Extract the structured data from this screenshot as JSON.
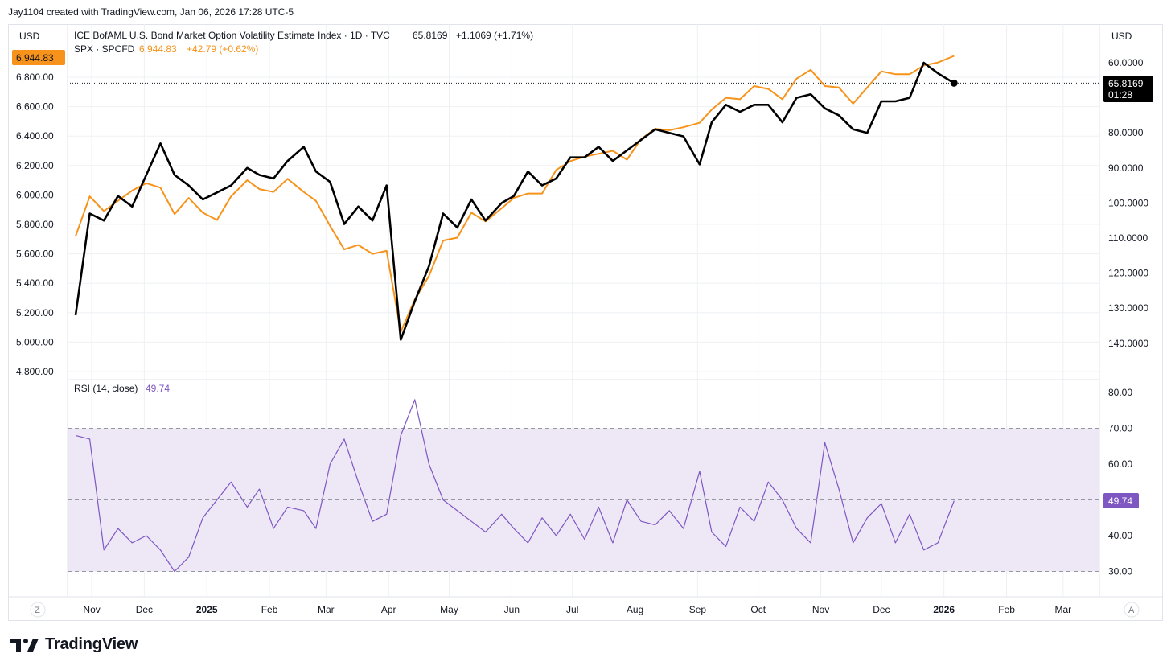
{
  "header": {
    "text": "Jay1104 created with TradingView.com, Jan 06, 2026 17:28 UTC-5"
  },
  "footer": {
    "brand": "TradingView"
  },
  "colors": {
    "spx": "#f7931a",
    "vol": "#000000",
    "rsi": "#7e57c2",
    "rsi_band": "#ede7f6",
    "grid": "#eef0f3"
  },
  "chart_data": [
    {
      "type": "line",
      "title": "ICE BofAML U.S. Bond Market Option Volatility Estimate Index · 1D · TVC",
      "left_axis": {
        "currency": "USD",
        "ticks": [
          "6,800.00",
          "6,600.00",
          "6,400.00",
          "6,200.00",
          "6,000.00",
          "5,800.00",
          "5,600.00",
          "5,400.00",
          "5,200.00",
          "5,000.00",
          "4,800.00"
        ],
        "range": [
          4800,
          7000
        ]
      },
      "right_axis": {
        "currency": "USD",
        "ticks": [
          "60.0000",
          "80.0000",
          "90.0000",
          "100.0000",
          "110.0000",
          "120.0000",
          "130.0000",
          "140.0000"
        ],
        "inverted": true
      },
      "x_ticks": [
        "Nov",
        "Dec",
        "2025",
        "Feb",
        "Mar",
        "Apr",
        "May",
        "Jun",
        "Jul",
        "Aug",
        "Sep",
        "Oct",
        "Nov",
        "Dec",
        "2026",
        "Feb",
        "Mar"
      ],
      "legend": {
        "vol_label": "ICE BofAML U.S. Bond Market Option Volatility Estimate Index · 1D · TVC",
        "vol_last": "65.8169",
        "vol_change": "+1.1069 (+1.71%)",
        "spx_label": "SPX · SPCFD",
        "spx_last": "6,944.83",
        "spx_change": "+42.79 (+0.62%)"
      },
      "badges": {
        "spx_price": "6,944.83",
        "vol_price": "65.8169",
        "vol_countdown": "01:28"
      },
      "series": [
        {
          "name": "SPX · SPCFD",
          "axis": "left",
          "x": [
            "2024-10-28",
            "2024-11-04",
            "2024-11-11",
            "2024-11-18",
            "2024-11-25",
            "2024-12-02",
            "2024-12-09",
            "2024-12-16",
            "2024-12-23",
            "2024-12-30",
            "2025-01-06",
            "2025-01-13",
            "2025-01-21",
            "2025-01-27",
            "2025-02-03",
            "2025-02-10",
            "2025-02-18",
            "2025-02-24",
            "2025-03-03",
            "2025-03-10",
            "2025-03-17",
            "2025-03-24",
            "2025-03-31",
            "2025-04-07",
            "2025-04-14",
            "2025-04-21",
            "2025-04-28",
            "2025-05-05",
            "2025-05-12",
            "2025-05-19",
            "2025-05-27",
            "2025-06-02",
            "2025-06-09",
            "2025-06-16",
            "2025-06-23",
            "2025-06-30",
            "2025-07-07",
            "2025-07-14",
            "2025-07-21",
            "2025-07-28",
            "2025-08-04",
            "2025-08-11",
            "2025-08-18",
            "2025-08-25",
            "2025-09-02",
            "2025-09-08",
            "2025-09-15",
            "2025-09-22",
            "2025-09-29",
            "2025-10-06",
            "2025-10-13",
            "2025-10-20",
            "2025-10-27",
            "2025-11-03",
            "2025-11-10",
            "2025-11-17",
            "2025-11-24",
            "2025-12-01",
            "2025-12-08",
            "2025-12-15",
            "2025-12-22",
            "2025-12-29",
            "2026-01-06"
          ],
          "values": [
            5720,
            5990,
            5890,
            5960,
            6030,
            6080,
            6050,
            5870,
            5980,
            5880,
            5830,
            5990,
            6100,
            6040,
            6020,
            6110,
            6020,
            5960,
            5790,
            5630,
            5660,
            5600,
            5620,
            5070,
            5290,
            5450,
            5690,
            5710,
            5880,
            5820,
            5910,
            5980,
            6010,
            6010,
            6170,
            6230,
            6260,
            6280,
            6300,
            6240,
            6380,
            6450,
            6440,
            6460,
            6490,
            6580,
            6660,
            6650,
            6740,
            6720,
            6650,
            6790,
            6850,
            6740,
            6730,
            6620,
            6730,
            6840,
            6820,
            6820,
            6880,
            6900,
            6945
          ]
        },
        {
          "name": "ICE BofAML U.S. Bond Market Option Volatility Estimate Index",
          "axis": "right",
          "x": [
            "2024-10-28",
            "2024-11-04",
            "2024-11-11",
            "2024-11-18",
            "2024-11-25",
            "2024-12-02",
            "2024-12-09",
            "2024-12-16",
            "2024-12-23",
            "2024-12-30",
            "2025-01-06",
            "2025-01-13",
            "2025-01-21",
            "2025-01-27",
            "2025-02-03",
            "2025-02-10",
            "2025-02-18",
            "2025-02-24",
            "2025-03-03",
            "2025-03-10",
            "2025-03-17",
            "2025-03-24",
            "2025-03-31",
            "2025-04-07",
            "2025-04-14",
            "2025-04-21",
            "2025-04-28",
            "2025-05-05",
            "2025-05-12",
            "2025-05-19",
            "2025-05-27",
            "2025-06-02",
            "2025-06-09",
            "2025-06-16",
            "2025-06-23",
            "2025-06-30",
            "2025-07-07",
            "2025-07-14",
            "2025-07-21",
            "2025-07-28",
            "2025-08-04",
            "2025-08-11",
            "2025-08-18",
            "2025-08-25",
            "2025-09-02",
            "2025-09-08",
            "2025-09-15",
            "2025-09-22",
            "2025-09-29",
            "2025-10-06",
            "2025-10-13",
            "2025-10-20",
            "2025-10-27",
            "2025-11-03",
            "2025-11-10",
            "2025-11-17",
            "2025-11-24",
            "2025-12-01",
            "2025-12-08",
            "2025-12-15",
            "2025-12-22",
            "2025-12-29",
            "2026-01-06"
          ],
          "values": [
            132,
            103,
            105,
            98,
            101,
            92,
            83,
            92,
            95,
            99,
            97,
            95,
            90,
            92,
            93,
            88,
            84,
            91,
            94,
            106,
            101,
            105,
            95,
            139,
            128,
            118,
            103,
            107,
            99,
            105,
            100,
            98,
            91,
            95,
            93,
            87,
            87,
            84,
            88,
            85,
            82,
            79,
            80,
            81,
            89,
            77,
            72,
            74,
            72,
            72,
            77,
            70,
            69,
            73,
            75,
            79,
            80,
            71,
            71,
            70,
            60,
            63,
            65.8169
          ]
        },
        {
          "name": "RSI (14, close)",
          "pane": "rsi",
          "range": [
            25,
            85
          ],
          "ticks": [
            "80.00",
            "70.00",
            "60.00",
            "40.00",
            "30.00"
          ],
          "bands": [
            30,
            70
          ],
          "last": "49.74",
          "x": [
            "2024-10-28",
            "2024-11-04",
            "2024-11-11",
            "2024-11-18",
            "2024-11-25",
            "2024-12-02",
            "2024-12-09",
            "2024-12-16",
            "2024-12-23",
            "2024-12-30",
            "2025-01-06",
            "2025-01-13",
            "2025-01-21",
            "2025-01-27",
            "2025-02-03",
            "2025-02-10",
            "2025-02-18",
            "2025-02-24",
            "2025-03-03",
            "2025-03-10",
            "2025-03-17",
            "2025-03-24",
            "2025-03-31",
            "2025-04-07",
            "2025-04-14",
            "2025-04-21",
            "2025-04-28",
            "2025-05-05",
            "2025-05-12",
            "2025-05-19",
            "2025-05-27",
            "2025-06-02",
            "2025-06-09",
            "2025-06-16",
            "2025-06-23",
            "2025-06-30",
            "2025-07-07",
            "2025-07-14",
            "2025-07-21",
            "2025-07-28",
            "2025-08-04",
            "2025-08-11",
            "2025-08-18",
            "2025-08-25",
            "2025-09-02",
            "2025-09-08",
            "2025-09-15",
            "2025-09-22",
            "2025-09-29",
            "2025-10-06",
            "2025-10-13",
            "2025-10-20",
            "2025-10-27",
            "2025-11-03",
            "2025-11-10",
            "2025-11-17",
            "2025-11-24",
            "2025-12-01",
            "2025-12-08",
            "2025-12-15",
            "2025-12-22",
            "2025-12-29",
            "2026-01-06"
          ],
          "values": [
            68,
            67,
            36,
            42,
            38,
            40,
            36,
            30,
            34,
            45,
            50,
            55,
            48,
            53,
            42,
            48,
            47,
            42,
            60,
            67,
            55,
            44,
            46,
            68,
            78,
            60,
            50,
            47,
            44,
            41,
            46,
            42,
            38,
            45,
            40,
            46,
            39,
            48,
            38,
            50,
            44,
            43,
            47,
            42,
            58,
            41,
            37,
            48,
            44,
            55,
            50,
            42,
            38,
            66,
            53,
            38,
            45,
            49,
            38,
            46,
            36,
            38,
            49.74
          ]
        }
      ]
    }
  ]
}
